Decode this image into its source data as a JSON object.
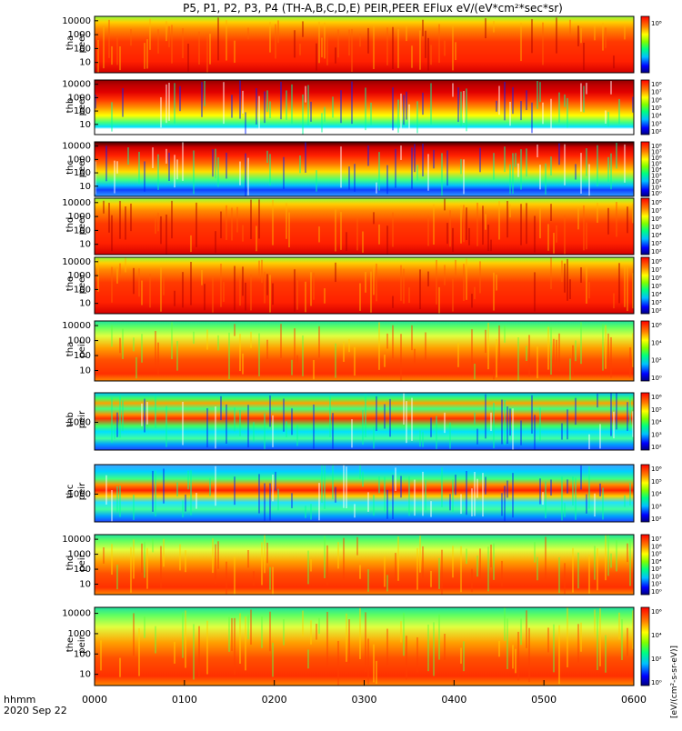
{
  "title": "P5, P1, P2, P3, P4 (TH-A,B,C,D,E) PEIR,PEER EFlux eV/(eV*cm²*sec*sr)",
  "x_axis": {
    "label_line1": "hhmm",
    "label_line2": "2020 Sep 22",
    "ticks": [
      "0000",
      "0100",
      "0200",
      "0300",
      "0400",
      "0500",
      "0600"
    ]
  },
  "colorbar_label": "[eV/(cm²-s-sr-eV)]",
  "chart_data": [
    {
      "type": "heatmap",
      "probe": "tha",
      "species": "peer",
      "ylabel": [
        "tha",
        "peer"
      ],
      "yscale": "log",
      "y_ticks": [
        "10",
        "100",
        "1000",
        "10000"
      ],
      "cbar_ticks": [
        "10⁸"
      ],
      "style": "hot"
    },
    {
      "type": "heatmap",
      "probe": "thb",
      "species": "peer",
      "ylabel": [
        "thb",
        "peer"
      ],
      "yscale": "log",
      "y_ticks": [
        "10",
        "100",
        "1000",
        "10000"
      ],
      "cbar_ticks": [
        "10²",
        "10³",
        "10⁴",
        "10⁵",
        "10⁶",
        "10⁷",
        "10⁸"
      ],
      "style": "bands_b_e"
    },
    {
      "type": "heatmap",
      "probe": "thc",
      "species": "peer",
      "ylabel": [
        "thc",
        "peer"
      ],
      "yscale": "log",
      "y_ticks": [
        "10",
        "100",
        "1000",
        "10000"
      ],
      "cbar_ticks": [
        "10⁰",
        "10¹",
        "10²",
        "10³",
        "10⁴",
        "10⁵",
        "10⁶",
        "10⁷",
        "10⁸"
      ],
      "style": "bands_c_e"
    },
    {
      "type": "heatmap",
      "probe": "thd",
      "species": "peer",
      "ylabel": [
        "thd",
        "peer"
      ],
      "yscale": "log",
      "y_ticks": [
        "10",
        "100",
        "1000",
        "10000"
      ],
      "cbar_ticks": [
        "10²",
        "10³",
        "10⁴",
        "10⁵",
        "10⁶",
        "10⁷",
        "10⁸"
      ],
      "style": "hot"
    },
    {
      "type": "heatmap",
      "probe": "the",
      "species": "peer",
      "ylabel": [
        "the",
        "peer"
      ],
      "yscale": "log",
      "y_ticks": [
        "10",
        "100",
        "1000",
        "10000"
      ],
      "cbar_ticks": [
        "10²",
        "10³",
        "10⁴",
        "10⁵",
        "10⁶",
        "10⁷",
        "10⁸"
      ],
      "style": "hot"
    },
    {
      "type": "heatmap",
      "probe": "tha",
      "species": "peir",
      "ylabel": [
        "tha",
        "peir"
      ],
      "yscale": "log",
      "y_ticks": [
        "10",
        "100",
        "1000",
        "10000"
      ],
      "cbar_ticks": [
        "10⁰",
        "10²",
        "10⁴",
        "10⁶"
      ],
      "style": "ion"
    },
    {
      "type": "heatmap",
      "probe": "thb",
      "species": "peir",
      "ylabel": [
        "thb",
        "peir"
      ],
      "yscale": "log",
      "y_ticks": [
        "1000"
      ],
      "cbar_ticks": [
        "10²",
        "10³",
        "10⁴",
        "10⁵",
        "10⁶"
      ],
      "style": "bands_b_i"
    },
    {
      "type": "heatmap",
      "probe": "thc",
      "species": "peir",
      "ylabel": [
        "thc",
        "peir"
      ],
      "yscale": "log",
      "y_ticks": [
        "1000"
      ],
      "cbar_ticks": [
        "10²",
        "10³",
        "10⁴",
        "10⁵",
        "10⁶"
      ],
      "style": "bands_c_i"
    },
    {
      "type": "heatmap",
      "probe": "thd",
      "species": "peir",
      "ylabel": [
        "thd",
        "peir"
      ],
      "yscale": "log",
      "y_ticks": [
        "10",
        "100",
        "1000",
        "10000"
      ],
      "cbar_ticks": [
        "10⁰",
        "10¹",
        "10²",
        "10³",
        "10⁴",
        "10⁵",
        "10⁶",
        "10⁷"
      ],
      "style": "ion"
    },
    {
      "type": "heatmap",
      "probe": "the",
      "species": "peir",
      "ylabel": [
        "the",
        "peir"
      ],
      "yscale": "log",
      "y_ticks": [
        "10",
        "100",
        "1000",
        "10000"
      ],
      "cbar_ticks": [
        "10⁰",
        "10²",
        "10⁴",
        "10⁶"
      ],
      "style": "ion"
    }
  ]
}
